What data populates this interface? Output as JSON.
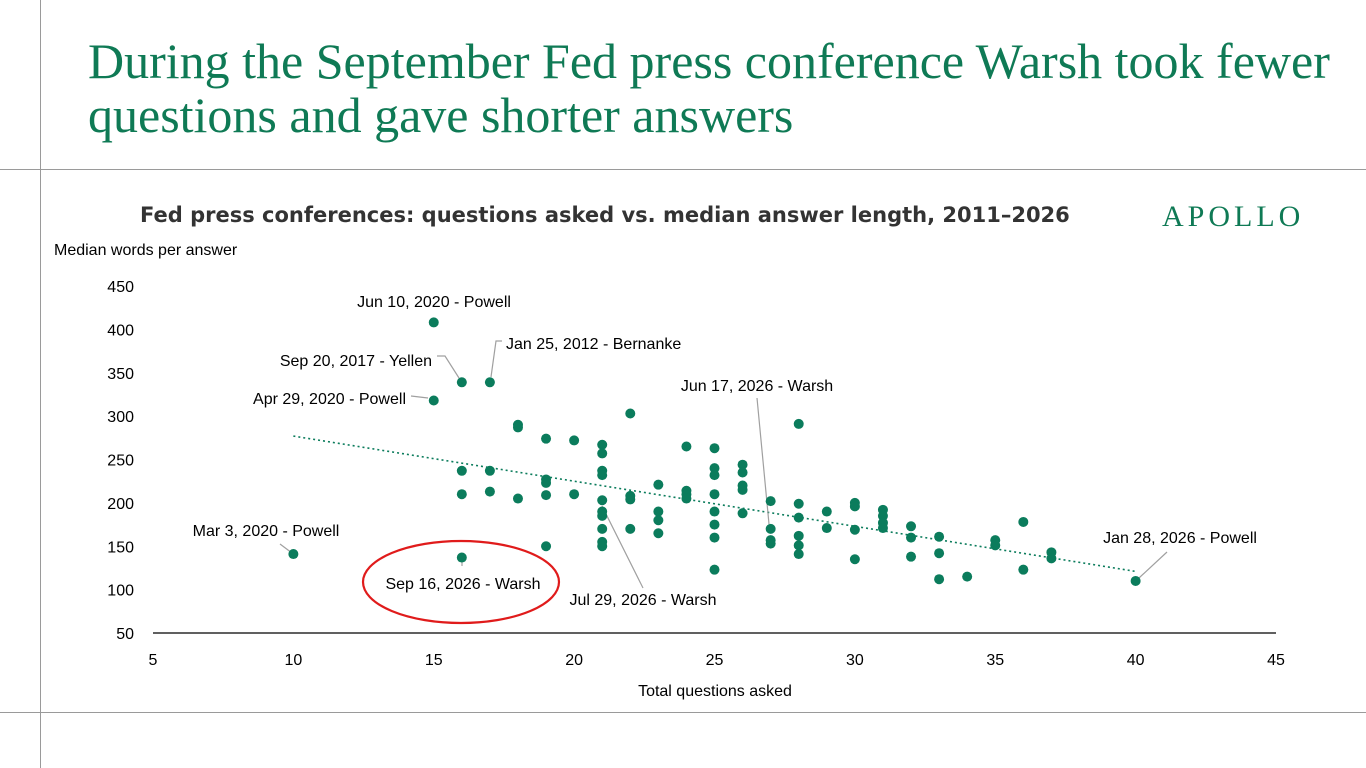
{
  "headline": "During the September Fed press conference Warsh took fewer questions and gave shorter answers",
  "brand": "APOLLO",
  "colors": {
    "accent": "#0f7a55",
    "points": "#0b7c5c",
    "highlight": "#e01b1b",
    "leader": "#a0a0a0"
  },
  "chart_data": {
    "type": "scatter",
    "title": "Fed press conferences: questions asked vs. median answer length, 2011–2026",
    "xlabel": "Total questions asked",
    "ylabel": "Median words per answer",
    "xlim": [
      5,
      45
    ],
    "ylim": [
      50,
      450
    ],
    "xticks": [
      5,
      10,
      15,
      20,
      25,
      30,
      35,
      40,
      45
    ],
    "yticks": [
      50,
      100,
      150,
      200,
      250,
      300,
      350,
      400,
      450
    ],
    "grid": false,
    "trendline": {
      "style": "dotted",
      "from": [
        10,
        277
      ],
      "to": [
        40,
        121
      ]
    },
    "points": [
      [
        15,
        408
      ],
      [
        16,
        339
      ],
      [
        17,
        339
      ],
      [
        15,
        318
      ],
      [
        10,
        141
      ],
      [
        16,
        237
      ],
      [
        16,
        210
      ],
      [
        17,
        237
      ],
      [
        17,
        213
      ],
      [
        18,
        290
      ],
      [
        18,
        287
      ],
      [
        18,
        205
      ],
      [
        19,
        274
      ],
      [
        19,
        227
      ],
      [
        19,
        223
      ],
      [
        19,
        209
      ],
      [
        19,
        150
      ],
      [
        20,
        272
      ],
      [
        20,
        210
      ],
      [
        21,
        267
      ],
      [
        21,
        257
      ],
      [
        21,
        237
      ],
      [
        21,
        232
      ],
      [
        21,
        203
      ],
      [
        21,
        190
      ],
      [
        21,
        185
      ],
      [
        21,
        170
      ],
      [
        21,
        155
      ],
      [
        21,
        150
      ],
      [
        22,
        303
      ],
      [
        22,
        208
      ],
      [
        22,
        204
      ],
      [
        22,
        170
      ],
      [
        23,
        221
      ],
      [
        23,
        190
      ],
      [
        23,
        180
      ],
      [
        23,
        165
      ],
      [
        24,
        265
      ],
      [
        24,
        214
      ],
      [
        24,
        210
      ],
      [
        24,
        205
      ],
      [
        25,
        263
      ],
      [
        25,
        240
      ],
      [
        25,
        232
      ],
      [
        25,
        210
      ],
      [
        25,
        190
      ],
      [
        25,
        175
      ],
      [
        25,
        160
      ],
      [
        25,
        123
      ],
      [
        26,
        244
      ],
      [
        26,
        235
      ],
      [
        26,
        220
      ],
      [
        26,
        215
      ],
      [
        26,
        188
      ],
      [
        27,
        202
      ],
      [
        27,
        170
      ],
      [
        27,
        157
      ],
      [
        27,
        153
      ],
      [
        28,
        291
      ],
      [
        28,
        199
      ],
      [
        28,
        183
      ],
      [
        28,
        162
      ],
      [
        28,
        151
      ],
      [
        28,
        141
      ],
      [
        29,
        190
      ],
      [
        29,
        171
      ],
      [
        30,
        200
      ],
      [
        30,
        196
      ],
      [
        30,
        169
      ],
      [
        30,
        135
      ],
      [
        31,
        192
      ],
      [
        31,
        185
      ],
      [
        31,
        177
      ],
      [
        31,
        171
      ],
      [
        32,
        173
      ],
      [
        32,
        160
      ],
      [
        32,
        138
      ],
      [
        33,
        161
      ],
      [
        33,
        142
      ],
      [
        33,
        112
      ],
      [
        34,
        115
      ],
      [
        35,
        157
      ],
      [
        35,
        151
      ],
      [
        36,
        178
      ],
      [
        36,
        123
      ],
      [
        37,
        143
      ],
      [
        37,
        136
      ],
      [
        16,
        137
      ],
      [
        40,
        110
      ]
    ],
    "annotations": [
      {
        "text": "Jun 10, 2020 - Powell",
        "point": [
          15,
          408
        ]
      },
      {
        "text": "Sep 20, 2017 - Yellen",
        "point": [
          16,
          339
        ]
      },
      {
        "text": "Jan 25, 2012 - Bernanke",
        "point": [
          17,
          339
        ]
      },
      {
        "text": "Apr 29, 2020 - Powell",
        "point": [
          15,
          318
        ]
      },
      {
        "text": "Jun 17, 2026 - Warsh",
        "point": [
          27,
          170
        ]
      },
      {
        "text": "Mar 3, 2020 - Powell",
        "point": [
          10,
          141
        ]
      },
      {
        "text": "Jan 28, 2026 - Powell",
        "point": [
          40,
          110
        ]
      },
      {
        "text": "Sep 16, 2026 - Warsh",
        "point": [
          16,
          137
        ],
        "highlight": true
      },
      {
        "text": "Jul 29, 2026 - Warsh",
        "point": [
          21,
          190
        ]
      }
    ]
  }
}
